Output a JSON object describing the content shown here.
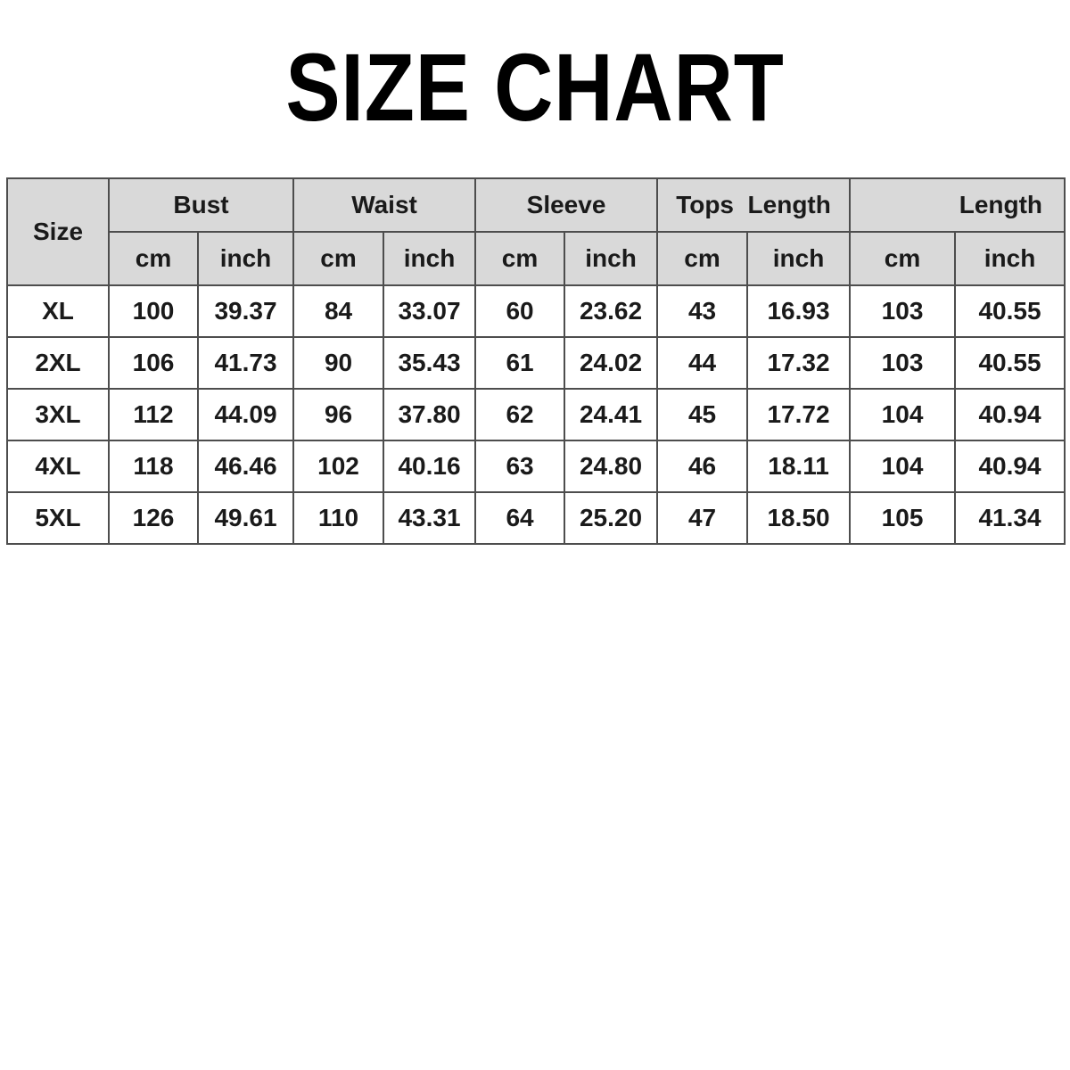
{
  "title": "SIZE CHART",
  "table": {
    "size_header": "Size",
    "groups": [
      "Bust",
      "Waist",
      "Sleeve",
      "Tops  Length",
      "Length"
    ],
    "units": [
      "cm",
      "inch",
      "cm",
      "inch",
      "cm",
      "inch",
      "cm",
      "inch",
      "cm",
      "inch"
    ],
    "header_bg": "#d9d9d9",
    "rows": [
      {
        "size": "XL",
        "values": [
          "100",
          "39.37",
          "84",
          "33.07",
          "60",
          "23.62",
          "43",
          "16.93",
          "103",
          "40.55"
        ]
      },
      {
        "size": "2XL",
        "values": [
          "106",
          "41.73",
          "90",
          "35.43",
          "61",
          "24.02",
          "44",
          "17.32",
          "103",
          "40.55"
        ]
      },
      {
        "size": "3XL",
        "values": [
          "112",
          "44.09",
          "96",
          "37.80",
          "62",
          "24.41",
          "45",
          "17.72",
          "104",
          "40.94"
        ]
      },
      {
        "size": "4XL",
        "values": [
          "118",
          "46.46",
          "102",
          "40.16",
          "63",
          "24.80",
          "46",
          "18.11",
          "104",
          "40.94"
        ]
      },
      {
        "size": "5XL",
        "values": [
          "126",
          "49.61",
          "110",
          "43.31",
          "64",
          "25.20",
          "47",
          "18.50",
          "105",
          "41.34"
        ]
      }
    ]
  }
}
